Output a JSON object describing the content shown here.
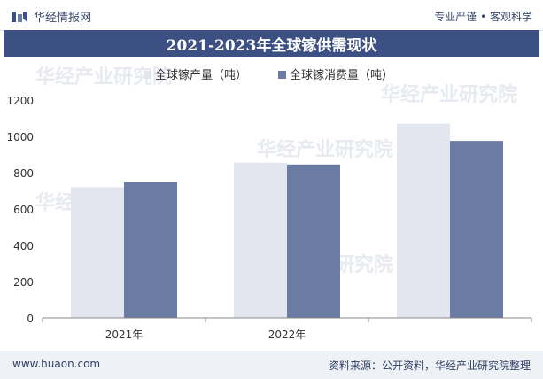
{
  "header": {
    "brand": "华经情报网",
    "tagline": "专业严谨 • 客观科学"
  },
  "footer": {
    "site": "www.huaon.com",
    "source": "资料来源：公开资料，华经产业研究院整理"
  },
  "watermark": "华经产业研究院",
  "colors": {
    "production": "#e3e6ef",
    "consumption": "#6b7ca4",
    "title_bg": "#3d5083"
  },
  "chart_data": {
    "type": "bar",
    "title": "2021-2023年全球镓供需现状",
    "categories": [
      "2021年",
      "2022年",
      ""
    ],
    "series": [
      {
        "name": "全球镓产量（吨）",
        "values": [
          720,
          855,
          1070
        ]
      },
      {
        "name": "全球镓消费量（吨）",
        "values": [
          748,
          845,
          975
        ]
      }
    ],
    "xlabel": "",
    "ylabel": "",
    "ylim": [
      0,
      1200
    ],
    "yticks": [
      0,
      200,
      400,
      600,
      800,
      1000,
      1200
    ],
    "grid": false,
    "legend": "top"
  }
}
